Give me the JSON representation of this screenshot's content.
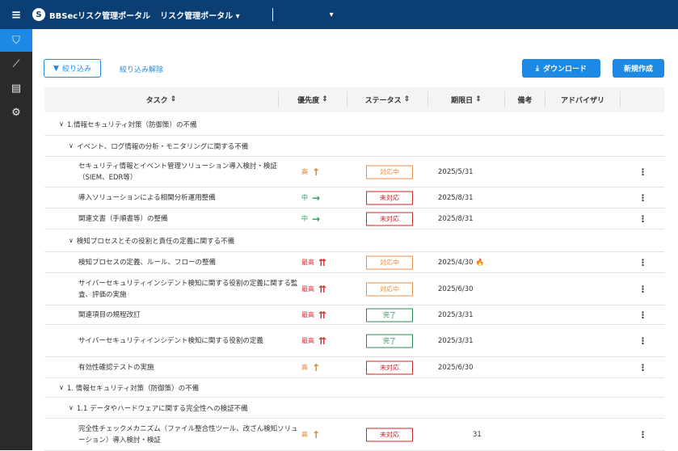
{
  "header": {
    "app_title": "BBSecリスク管理ポータル",
    "portal_select": "リスク管理ポータル",
    "org_select": ""
  },
  "sidebar": {
    "items": [
      {
        "icon": "shield-icon",
        "active": true
      },
      {
        "icon": "trend-icon"
      },
      {
        "icon": "list-icon"
      },
      {
        "icon": "gear-icon"
      }
    ]
  },
  "toolbar": {
    "filter": "絞り込み",
    "clear_filter": "絞り込み解除",
    "download": "ダウンロード",
    "create": "新規作成"
  },
  "columns": [
    "タスク",
    "優先度",
    "ステータス",
    "期限日",
    "備考",
    "アドバイザリ"
  ],
  "colors": {
    "header": "#0b3f73",
    "accent": "#1e88e5",
    "high": "#e67e22",
    "mid": "#27a060",
    "top": "#d32f2f",
    "in_progress": "#e8914a",
    "not_started": "#c62828",
    "done": "#2e8b57"
  },
  "rows": [
    {
      "type": "group",
      "label": "1.情報セキュリティ対策（防御策）の不備"
    },
    {
      "type": "sub",
      "label": "イベント、ログ情報の分析・モニタリングに関する不備"
    },
    {
      "type": "task",
      "task": "セキュリティ情報とイベント管理ソリューション導入検討・検証（SIEM、EDR等）",
      "priority": "高",
      "status": "対応中",
      "date": "2025/5/31"
    },
    {
      "type": "task",
      "task": "導入ソリューションによる相関分析運用整備",
      "priority": "中",
      "status": "未対応",
      "date": "2025/8/31"
    },
    {
      "type": "task",
      "task": "関連文書（手順書等）の整備",
      "priority": "中",
      "status": "未対応",
      "date": "2025/8/31"
    },
    {
      "type": "sub",
      "label": "検知プロセスとその役割と責任の定義に関する不備"
    },
    {
      "type": "task",
      "task": "検知プロセスの定義、ルール、フローの整備",
      "priority": "最高",
      "status": "対応中",
      "date": "2025/4/30",
      "overdue": true
    },
    {
      "type": "task",
      "task": "サイバーセキュリティインシデント検知に関する役割の定義に関する監査、評価の実施",
      "priority": "最高",
      "status": "対応中",
      "date": "2025/6/30"
    },
    {
      "type": "task",
      "task": "関連項目の規程改訂",
      "priority": "最高",
      "status": "完了",
      "date": "2025/3/31"
    },
    {
      "type": "task",
      "task": "サイバーセキュリティインシデント検知に関する役割の定義",
      "priority": "最高",
      "status": "完了",
      "date": "2025/3/31"
    },
    {
      "type": "task",
      "task": "有効性確認テストの実施",
      "priority": "高",
      "status": "未対応",
      "date": "2025/6/30"
    },
    {
      "type": "group",
      "label": "1. 情報セキュリティ対策（防御策）の不備"
    },
    {
      "type": "sub",
      "label": "1.1 データやハードウェアに関する完全性への検証不備"
    },
    {
      "type": "task",
      "task": "完全性チェックメカニズム（ファイル整合性ツール、改ざん検知ソリューション）導入検討・検証",
      "priority": "高",
      "status": "未対応",
      "date": "31",
      "masked": true
    }
  ]
}
